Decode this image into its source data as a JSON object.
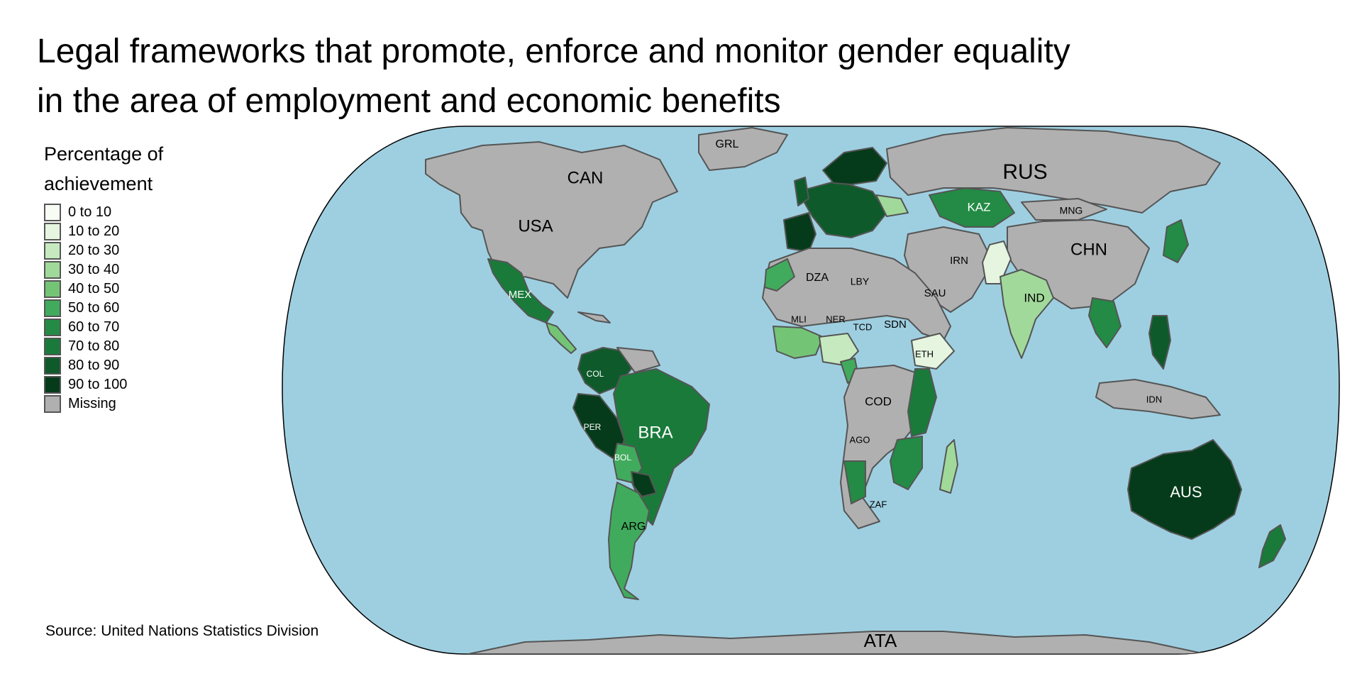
{
  "title_line1": "Legal frameworks that promote, enforce and monitor gender equality",
  "title_line2": "in the area of employment and economic benefits",
  "legend": {
    "title_line1": "Percentage of",
    "title_line2": "achievement",
    "items": [
      {
        "label": "0 to 10",
        "color": "#f7fcf5"
      },
      {
        "label": "10 to 20",
        "color": "#e5f5e0"
      },
      {
        "label": "20 to 30",
        "color": "#c7e9c0"
      },
      {
        "label": "30 to 40",
        "color": "#a1d99b"
      },
      {
        "label": "40 to 50",
        "color": "#74c476"
      },
      {
        "label": "50 to 60",
        "color": "#41ab5d"
      },
      {
        "label": "60 to 70",
        "color": "#238b45"
      },
      {
        "label": "70 to 80",
        "color": "#1a7a3a"
      },
      {
        "label": "80 to 90",
        "color": "#0e5a2b"
      },
      {
        "label": "90 to 100",
        "color": "#053b1a"
      },
      {
        "label": "Missing",
        "color": "#b0b0b0"
      }
    ]
  },
  "source": "Source: United Nations Statistics Division",
  "colors": {
    "ocean": "#9ecfe1",
    "missing": "#b0b0b0",
    "border": "#555555"
  },
  "country_labels": [
    "CAN",
    "USA",
    "GRL",
    "RUS",
    "KAZ",
    "MNG",
    "CHN",
    "IRN",
    "SAU",
    "IND",
    "DZA",
    "LBY",
    "MLI",
    "NER",
    "TCD",
    "SDN",
    "ETH",
    "COD",
    "AGO",
    "ZAF",
    "MEX",
    "COL",
    "PER",
    "BRA",
    "BOL",
    "ARG",
    "IDN",
    "AUS",
    "ATA"
  ]
}
